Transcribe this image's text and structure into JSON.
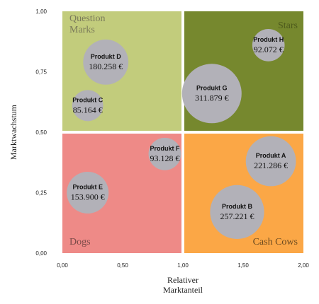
{
  "chart_data": {
    "type": "scatter",
    "variant": "bubble",
    "xlabel": "Relativer Marktanteil",
    "ylabel": "Marktwachstum",
    "xlim": [
      0,
      2
    ],
    "ylim": [
      0,
      1
    ],
    "x_ticks": [
      "0,00",
      "0,50",
      "1,00",
      "1,50",
      "2,00"
    ],
    "y_ticks": [
      "0,00",
      "0,25",
      "0,50",
      "0,75",
      "1,00"
    ],
    "quadrants": [
      {
        "name": "question-marks",
        "label_lines": [
          "Question",
          "Marks"
        ],
        "color": "#c2cc7c",
        "text_color": "#7a7a5a",
        "x_range": [
          0,
          1
        ],
        "y_range": [
          0.5,
          1
        ],
        "label_pos": "top-left"
      },
      {
        "name": "stars",
        "label_lines": [
          "Stars"
        ],
        "color": "#76882e",
        "text_color": "#4d5a1c",
        "x_range": [
          1,
          2
        ],
        "y_range": [
          0.5,
          1
        ],
        "label_pos": "top-right"
      },
      {
        "name": "dogs",
        "label_lines": [
          "Dogs"
        ],
        "color": "#ee8a87",
        "text_color": "#7a4a48",
        "x_range": [
          0,
          1
        ],
        "y_range": [
          0,
          0.5
        ],
        "label_pos": "bottom-left"
      },
      {
        "name": "cash-cows",
        "label_lines": [
          "Cash Cows"
        ],
        "color": "#fba746",
        "text_color": "#6a4a20",
        "x_range": [
          1,
          2
        ],
        "y_range": [
          0,
          0.5
        ],
        "label_pos": "bottom-right"
      }
    ],
    "bubble_color": "#b2b1b8",
    "points": [
      {
        "name": "Produkt A",
        "x": 1.73,
        "y": 0.38,
        "value": 221286,
        "value_label": "221.286 €"
      },
      {
        "name": "Produkt B",
        "x": 1.45,
        "y": 0.17,
        "value": 257221,
        "value_label": "257.221 €"
      },
      {
        "name": "Produkt C",
        "x": 0.21,
        "y": 0.61,
        "value": 85164,
        "value_label": "85.164 €"
      },
      {
        "name": "Produkt D",
        "x": 0.36,
        "y": 0.79,
        "value": 180258,
        "value_label": "180.258 €"
      },
      {
        "name": "Produkt E",
        "x": 0.21,
        "y": 0.25,
        "value": 153900,
        "value_label": "153.900 €"
      },
      {
        "name": "Produkt F",
        "x": 0.85,
        "y": 0.41,
        "value": 93128,
        "value_label": "93.128 €"
      },
      {
        "name": "Produkt G",
        "x": 1.24,
        "y": 0.66,
        "value": 311879,
        "value_label": "311.879 €"
      },
      {
        "name": "Produkt H",
        "x": 1.71,
        "y": 0.86,
        "value": 92072,
        "value_label": "92.072 €"
      }
    ]
  }
}
